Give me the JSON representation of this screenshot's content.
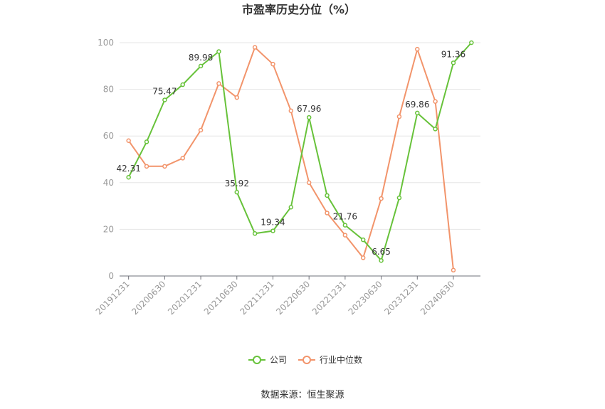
{
  "chart_data": {
    "type": "line",
    "title": "市盈率历史分位（%）",
    "ylim": [
      0,
      100
    ],
    "yticks": [
      0,
      20,
      40,
      60,
      80,
      100
    ],
    "x": [
      "20191231",
      "20200331",
      "20200630",
      "20200930",
      "20201231",
      "20210331",
      "20210630",
      "20210930",
      "20211231",
      "20220331",
      "20220630",
      "20220930",
      "20221231",
      "20230331",
      "20230630",
      "20230930",
      "20231231",
      "20240331",
      "20240630",
      "20240930"
    ],
    "xtick_labels": [
      "20191231",
      "20200630",
      "20201231",
      "20210630",
      "20211231",
      "20220630",
      "20221231",
      "20230630",
      "20231231",
      "20240630"
    ],
    "series": [
      {
        "name": "公司",
        "color": "#67c23a",
        "values": [
          42.31,
          57.5,
          75.47,
          82.0,
          89.98,
          96.2,
          35.92,
          18.2,
          19.34,
          29.5,
          67.96,
          34.5,
          21.76,
          15.5,
          6.65,
          33.5,
          69.86,
          63.0,
          91.36,
          100.0
        ],
        "labels": [
          "42.31",
          "",
          "75.47",
          "",
          "89.98",
          "",
          "35.92",
          "",
          "19.34",
          "",
          "67.96",
          "",
          "21.76",
          "",
          "6.65",
          "",
          "69.86",
          "",
          "91.36",
          ""
        ]
      },
      {
        "name": "行业中位数",
        "color": "#f2946b",
        "values": [
          58.0,
          47.0,
          47.0,
          50.5,
          62.5,
          82.5,
          76.5,
          98.0,
          90.8,
          70.8,
          40.0,
          27.0,
          17.5,
          7.8,
          33.2,
          68.3,
          97.2,
          74.8,
          2.5,
          null
        ],
        "labels": []
      }
    ],
    "legend_position": "bottom"
  },
  "source_text": "数据来源：恒生聚源"
}
